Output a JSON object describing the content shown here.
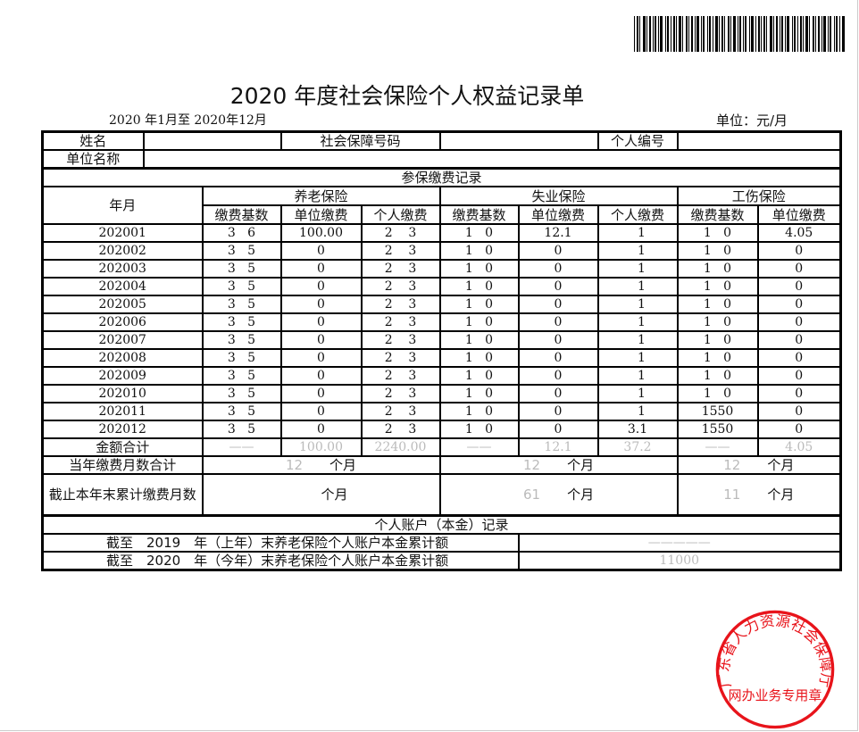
{
  "title": "2020 年度社会保险个人权益记录单",
  "period": "2020 年1月至 2020年12月",
  "unit": "单位：元/月",
  "info": {
    "name_label": "姓名",
    "ssn_label": "社会保障号码",
    "personal_id_label": "个人编号",
    "employer_label": "单位名称"
  },
  "contribution": {
    "section_title": "参保缴费记录",
    "year_month_label": "年月",
    "groups": [
      "养老保险",
      "失业保险",
      "工伤保险"
    ],
    "subheaders": [
      "缴费基数",
      "单位缴费",
      "个人缴费",
      "缴费基数",
      "单位缴费",
      "个人缴费",
      "缴费基数",
      "单位缴费"
    ],
    "rows": [
      {
        "month": "202001",
        "values": [
          "3   6",
          "100.00",
          "2    3",
          "1   0",
          "12.1",
          "  1",
          "1   0",
          "4.05"
        ]
      },
      {
        "month": "202002",
        "values": [
          "3   5",
          "0",
          "2    3",
          "1   0",
          "0",
          "  1",
          "1   0",
          "0"
        ]
      },
      {
        "month": "202003",
        "values": [
          "3   5",
          "0",
          "2    3",
          "1   0",
          "0",
          "  1",
          "1   0",
          "0"
        ]
      },
      {
        "month": "202004",
        "values": [
          "3   5",
          "0",
          "2    3",
          "1   0",
          "0",
          "  1",
          "1   0",
          "0"
        ]
      },
      {
        "month": "202005",
        "values": [
          "3   5",
          "0",
          "2    3",
          "1   0",
          "0",
          "  1",
          "1   0",
          "0"
        ]
      },
      {
        "month": "202006",
        "values": [
          "3   5",
          "0",
          "2    3",
          "1   0",
          "0",
          "  1",
          "1   0",
          "0"
        ]
      },
      {
        "month": "202007",
        "values": [
          "3   5",
          "0",
          "2    3",
          "1   0",
          "0",
          "  1",
          "1   0",
          "0"
        ]
      },
      {
        "month": "202008",
        "values": [
          "3   5",
          "0",
          "2    3",
          "1   0",
          "0",
          "  1",
          "1   0",
          "0"
        ]
      },
      {
        "month": "202009",
        "values": [
          "3   5",
          "0",
          "2    3",
          "1   0",
          "0",
          "  1",
          "1   0",
          "0"
        ]
      },
      {
        "month": "202010",
        "values": [
          "3   5",
          "0",
          "2    3",
          "1   0",
          "0",
          "  1",
          "1   0",
          "0"
        ]
      },
      {
        "month": "202011",
        "values": [
          "3   5",
          "0",
          "2    3",
          "1   0",
          "0",
          "  1",
          "1550",
          "0"
        ]
      },
      {
        "month": "202012",
        "values": [
          "3   5",
          "0",
          "2    3",
          "1   0",
          "0",
          "3.1",
          "1550",
          "0"
        ]
      }
    ],
    "total_label": "金额合计",
    "totals": [
      "——",
      "100.00",
      "2240.00",
      "——",
      "12.1",
      "37.2",
      "——",
      "4.05"
    ],
    "months_this_year_label": "当年缴费月数合计",
    "months_this_year": [
      "12",
      "12",
      "12"
    ],
    "cumulative_label": "截止本年末累计缴费月数",
    "cumulative": [
      "",
      "61",
      "11"
    ],
    "month_unit": "个月"
  },
  "account": {
    "section_title": "个人账户（本金）记录",
    "rows": [
      {
        "label": "截至　2019　年（上年）末养老保险个人账户本金累计额",
        "value": "—————"
      },
      {
        "label": "截至　2020　年（今年）末养老保险个人账户本金累计额",
        "value": "11000"
      }
    ]
  },
  "stamp": {
    "ring_text": "广东省人力资源社会保障厅",
    "bottom_text": "网办业务专用章",
    "color": "#e8141b"
  }
}
